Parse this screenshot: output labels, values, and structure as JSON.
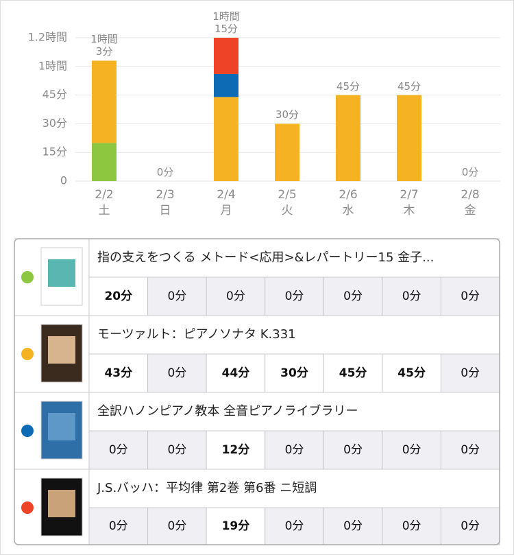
{
  "chart_data": {
    "type": "stacked-bar",
    "categories": [
      "2/2",
      "2/3",
      "2/4",
      "2/5",
      "2/6",
      "2/7",
      "2/8"
    ],
    "weekdays": [
      "土",
      "日",
      "月",
      "火",
      "水",
      "木",
      "金"
    ],
    "ylim": [
      0,
      75
    ],
    "yticks": [
      {
        "value": 0,
        "label": "0"
      },
      {
        "value": 15,
        "label": "15分"
      },
      {
        "value": 30,
        "label": "30分"
      },
      {
        "value": 45,
        "label": "45分"
      },
      {
        "value": 60,
        "label": "1時間"
      },
      {
        "value": 75,
        "label": "1.2時間"
      }
    ],
    "grid": true,
    "series": [
      {
        "name": "指の支えをつくる メトード<応用>&レパートリー15 金子...",
        "color": "#8dc63f",
        "values": [
          20,
          0,
          0,
          0,
          0,
          0,
          0
        ],
        "value_labels": [
          "20分",
          "0分",
          "0分",
          "0分",
          "0分",
          "0分",
          "0分"
        ]
      },
      {
        "name": "モーツァルト：ピアノソナタ K.331",
        "color": "#f5b324",
        "values": [
          43,
          0,
          44,
          30,
          45,
          45,
          0
        ],
        "value_labels": [
          "43分",
          "0分",
          "44分",
          "30分",
          "45分",
          "45分",
          "0分"
        ]
      },
      {
        "name": "全訳ハノンピアノ教本 全音ピアノライブラリー",
        "color": "#0d6bb5",
        "values": [
          0,
          0,
          12,
          0,
          0,
          0,
          0
        ],
        "value_labels": [
          "0分",
          "0分",
          "12分",
          "0分",
          "0分",
          "0分",
          "0分"
        ]
      },
      {
        "name": "J.S.バッハ：平均律 第2巻 第6番 ニ短調",
        "color": "#ee4327",
        "values": [
          0,
          0,
          19,
          0,
          0,
          0,
          0
        ],
        "value_labels": [
          "0分",
          "0分",
          "19分",
          "0分",
          "0分",
          "0分",
          "0分"
        ]
      }
    ],
    "totals": {
      "values": [
        63,
        0,
        75,
        30,
        45,
        45,
        0
      ],
      "value_labels": [
        "1時間\n3分",
        "0分",
        "1時間\n15分",
        "30分",
        "45分",
        "45分",
        "0分"
      ]
    }
  }
}
